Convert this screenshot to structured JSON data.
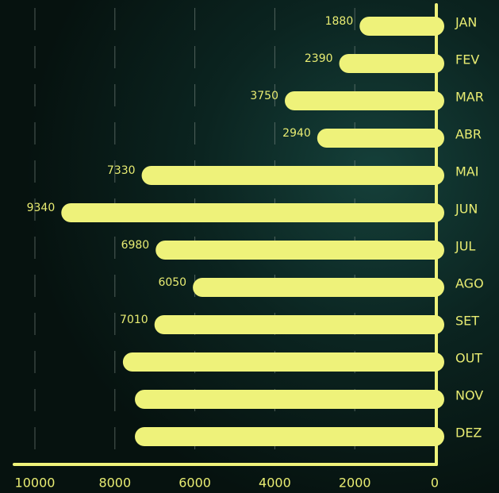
{
  "chart_data": {
    "type": "bar",
    "orientation": "horizontal",
    "categories": [
      "JAN",
      "FEV",
      "MAR",
      "ABR",
      "MAI",
      "JUN",
      "JUL",
      "AGO",
      "SET",
      "OUT",
      "NOV",
      "DEZ"
    ],
    "values": [
      1880,
      2390,
      3750,
      2940,
      7330,
      9340,
      6980,
      6050,
      7010,
      7800,
      7500,
      7500
    ],
    "value_labels": [
      "1880",
      "2390",
      "3750",
      "2940",
      "7330",
      "9340",
      "6980",
      "6050",
      "7010",
      null,
      null,
      null
    ],
    "color": "#eef27a",
    "xlim": [
      0,
      10000
    ],
    "xticks": [
      10000,
      8000,
      6000,
      4000,
      2000,
      0
    ],
    "x_reversed": true,
    "grid": true
  }
}
